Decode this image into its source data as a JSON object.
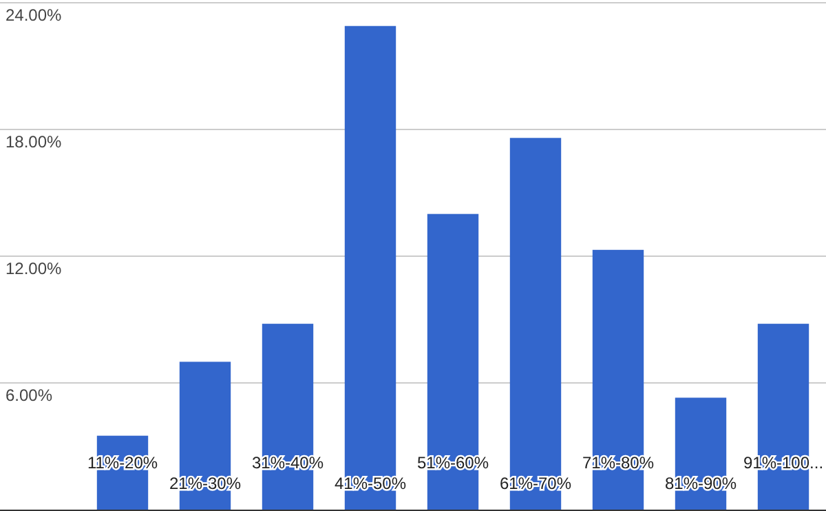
{
  "chart_data": {
    "type": "bar",
    "categories": [
      "11%-20%",
      "21%-30%",
      "31%-40%",
      "41%-50%",
      "51%-60%",
      "61%-70%",
      "71%-80%",
      "81%-90%",
      "91%-100..."
    ],
    "values": [
      3.5,
      7.0,
      8.8,
      22.9,
      14.0,
      17.6,
      12.3,
      5.3,
      8.8
    ],
    "color": "#3366cc",
    "ylim": [
      0,
      24
    ],
    "yticks": [
      {
        "value": 6,
        "label": "6.00%"
      },
      {
        "value": 12,
        "label": "12.00%"
      },
      {
        "value": 18,
        "label": "18.00%"
      },
      {
        "value": 24,
        "label": "24.00%"
      }
    ],
    "grid": "y"
  }
}
